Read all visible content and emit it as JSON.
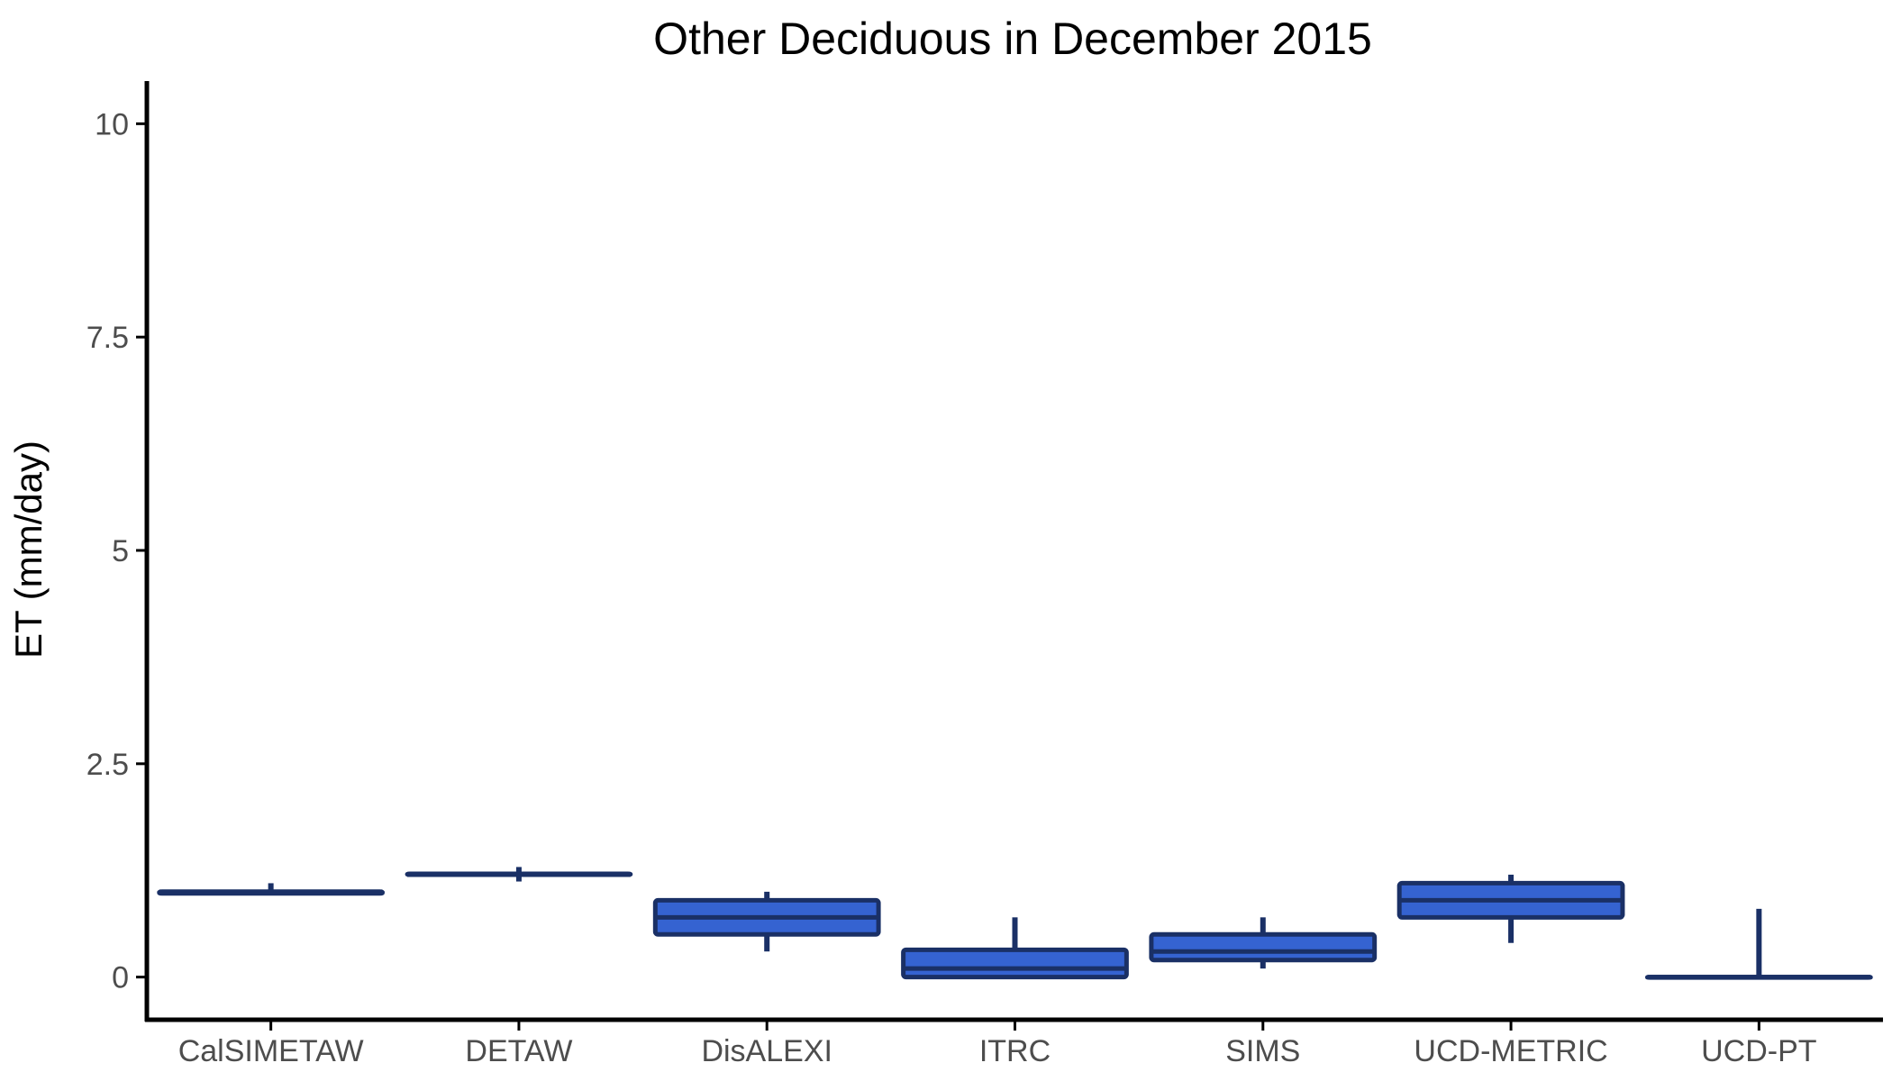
{
  "chart_data": {
    "type": "box",
    "title": "Other Deciduous in December 2015",
    "xlabel": "",
    "ylabel": "ET (mm/day)",
    "ylim": [
      -0.5,
      10.5
    ],
    "yticks": [
      0,
      2.5,
      5,
      7.5,
      10
    ],
    "ytick_labels": [
      "0",
      "2.5",
      "5",
      "7.5",
      "10"
    ],
    "grid": false,
    "legend": "none",
    "categories": [
      "CalSIMETAW",
      "DETAW",
      "DisALEXI",
      "ITRC",
      "SIMS",
      "UCD-METRIC",
      "UCD-PT"
    ],
    "series": [
      {
        "boxes": [
          {
            "min": 0.98,
            "q1": 0.98,
            "median": 1.0,
            "q3": 1.0,
            "max": 1.1
          },
          {
            "min": 1.12,
            "q1": 1.2,
            "median": 1.2,
            "q3": 1.21,
            "max": 1.29
          },
          {
            "min": 0.3,
            "q1": 0.5,
            "median": 0.7,
            "q3": 0.9,
            "max": 1.0
          },
          {
            "min": 0.0,
            "q1": 0.0,
            "median": 0.1,
            "q3": 0.32,
            "max": 0.7
          },
          {
            "min": 0.1,
            "q1": 0.2,
            "median": 0.3,
            "q3": 0.5,
            "max": 0.7
          },
          {
            "min": 0.4,
            "q1": 0.7,
            "median": 0.9,
            "q3": 1.1,
            "max": 1.2
          },
          {
            "min": 0.0,
            "q1": 0.0,
            "median": 0.0,
            "q3": 0.0,
            "max": 0.8
          }
        ]
      }
    ]
  },
  "colors": {
    "box_fill": "#3563d1",
    "box_stroke": "#1a3066",
    "axis": "#000000",
    "tick_label": "#4d4d4d"
  }
}
